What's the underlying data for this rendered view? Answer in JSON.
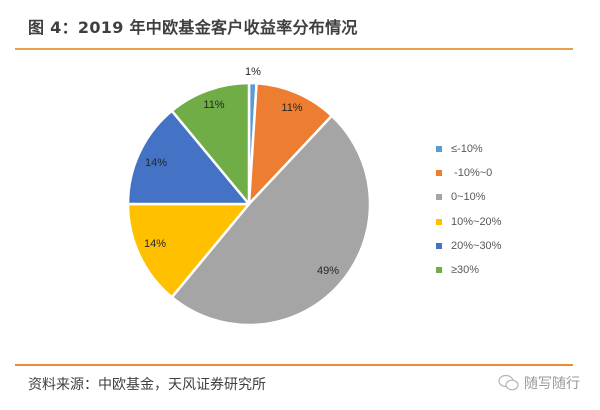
{
  "header": {
    "title": "图 4：2019 年中欧基金客户收益率分布情况"
  },
  "footer": {
    "source": "资料来源：中欧基金，天风证券研究所",
    "watermark": "随写随行",
    "watermark_icon": "wechat-icon"
  },
  "colors": {
    "rule": "#e8a04c",
    "slices": [
      "#5b9bd5",
      "#ed7d31",
      "#a5a5a5",
      "#ffc000",
      "#4472c4",
      "#70ad47"
    ]
  },
  "legend": {
    "items": [
      {
        "label": "≤-10%",
        "color": "#5b9bd5"
      },
      {
        "label": " -10%~0",
        "color": "#ed7d31"
      },
      {
        "label": "0~10%",
        "color": "#a5a5a5"
      },
      {
        "label": "10%~20%",
        "color": "#ffc000"
      },
      {
        "label": "20%~30%",
        "color": "#4472c4"
      },
      {
        "label": "≥30%",
        "color": "#70ad47"
      }
    ]
  },
  "chart_data": {
    "type": "pie",
    "title": "图 4：2019 年中欧基金客户收益率分布情况",
    "categories": [
      "≤-10%",
      "-10%~0",
      "0~10%",
      "10%~20%",
      "20%~30%",
      "≥30%"
    ],
    "values": [
      1,
      11,
      49,
      14,
      14,
      11
    ],
    "labels": [
      "1%",
      "11%",
      "49%",
      "14%",
      "14%",
      "11%"
    ],
    "unit": "%",
    "start_angle": "12 o'clock, clockwise",
    "legend_position": "right",
    "source": "资料来源：中欧基金，天风证券研究所"
  }
}
